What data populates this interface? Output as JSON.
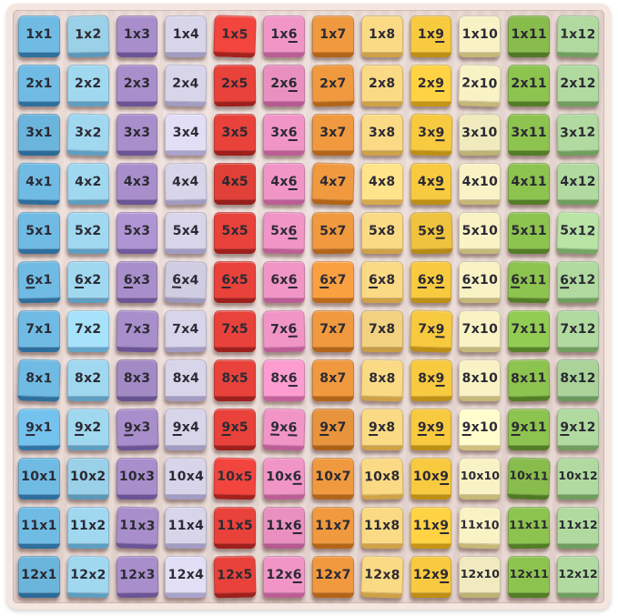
{
  "board": {
    "rows": 12,
    "cols": 12,
    "text_color": "#2b2a33",
    "tray_color": "#ecdad4",
    "rim_color": "#f4e6e0",
    "background_color": "#ffffff",
    "column_colors": [
      {
        "name": "blue",
        "top": "#6fbbe4",
        "side": "#2e6f9e"
      },
      {
        "name": "light-blue",
        "top": "#a0d8f0",
        "side": "#5e9ec0"
      },
      {
        "name": "purple",
        "top": "#a88fcb",
        "side": "#6b5596"
      },
      {
        "name": "pale-lavender",
        "top": "#d8d4ea",
        "side": "#a29cc2"
      },
      {
        "name": "red",
        "top": "#e8423a",
        "side": "#9e201c"
      },
      {
        "name": "pink",
        "top": "#f195c7",
        "side": "#bc5e96"
      },
      {
        "name": "orange",
        "top": "#f0993e",
        "side": "#b26518"
      },
      {
        "name": "pale-orange",
        "top": "#fbda85",
        "side": "#cfa248"
      },
      {
        "name": "yellow",
        "top": "#f8ca40",
        "side": "#bd8f14"
      },
      {
        "name": "cream",
        "top": "#f9f2c5",
        "side": "#c5b878"
      },
      {
        "name": "green",
        "top": "#8dc34f",
        "side": "#537d26"
      },
      {
        "name": "pale-green",
        "top": "#b0da9f",
        "side": "#6f9e5e"
      }
    ],
    "underline_note": "digits wrapped in underscores are underlined on the physical tiles",
    "cells": [
      [
        "1x1",
        "1x2",
        "1x3",
        "1x4",
        "1x5",
        "1x_6_",
        "1x7",
        "1x8",
        "1x_9_",
        "1x10",
        "1x11",
        "1x12"
      ],
      [
        "2x1",
        "2x2",
        "2x3",
        "2x4",
        "2x5",
        "2x_6_",
        "2x7",
        "2x8",
        "2x_9_",
        "2x10",
        "2x11",
        "2x12"
      ],
      [
        "3x1",
        "3x2",
        "3x3",
        "3x4",
        "3x5",
        "3x_6_",
        "3x7",
        "3x8",
        "3x_9_",
        "3x10",
        "3x11",
        "3x12"
      ],
      [
        "4x1",
        "4x2",
        "4x3",
        "4x4",
        "4x5",
        "4x_6_",
        "4x7",
        "4x8",
        "4x_9_",
        "4x10",
        "4x11",
        "4x12"
      ],
      [
        "5x1",
        "5x2",
        "5x3",
        "5x4",
        "5x5",
        "5x_6_",
        "5x7",
        "5x8",
        "5x_9_",
        "5x10",
        "5x11",
        "5x12"
      ],
      [
        "_6_x1",
        "_6_x2",
        "_6_x3",
        "_6_x4",
        "_6_x5",
        "6x_6_",
        "_6_x7",
        "_6_x8",
        "_6_x_9_",
        "_6_x10",
        "_6_x11",
        "_6_x12"
      ],
      [
        "7x1",
        "7x2",
        "7x3",
        "7x4",
        "7x5",
        "7x_6_",
        "7x7",
        "7x8",
        "7x_9_",
        "7x10",
        "7x11",
        "7x12"
      ],
      [
        "8x1",
        "8x2",
        "8x3",
        "8x4",
        "8x5",
        "8x_6_",
        "8x7",
        "8x8",
        "8x_9_",
        "8x10",
        "8x11",
        "8x12"
      ],
      [
        "_9_x1",
        "_9_x2",
        "_9_x3",
        "_9_x4",
        "_9_x5",
        "_9_x_6_",
        "_9_x7",
        "_9_x8",
        "_9_x_9_",
        "_9_x10",
        "_9_x11",
        "_9_x12"
      ],
      [
        "10x1",
        "10x2",
        "10x3",
        "10x4",
        "10x5",
        "10x_6_",
        "10x7",
        "10x8",
        "10x_9_",
        "10x10",
        "10x11",
        "10x12"
      ],
      [
        "11x1",
        "11x2",
        "11x3",
        "11x4",
        "11x5",
        "11x_6_",
        "11x7",
        "11x8",
        "11x_9_",
        "11x10",
        "11x11",
        "11x12"
      ],
      [
        "12x1",
        "12x2",
        "12x3",
        "12x4",
        "12x5",
        "12x_6_",
        "12x7",
        "12x8",
        "12x_9_",
        "12x10",
        "12x11",
        "12x12"
      ]
    ]
  }
}
